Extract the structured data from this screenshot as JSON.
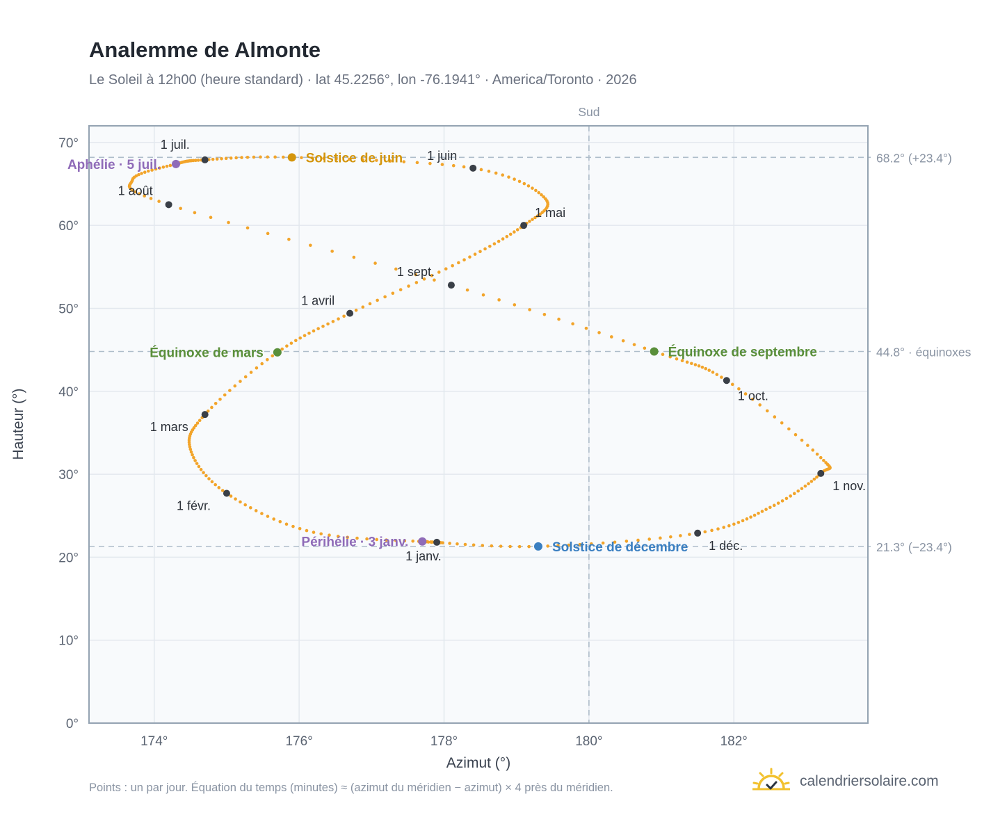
{
  "header": {
    "title": "Analemme de Almonte",
    "subtitle": "Le Soleil à 12h00 (heure standard) · lat 45.2256°, lon -76.1941° · America/Toronto · 2026"
  },
  "footer": {
    "note": "Points : un par jour. Équation du temps (minutes) ≈ (azimut du méridien − azimut) × 4 près du méridien.",
    "brand": "calendriersolaire.com",
    "brand_icon": "sun-logo-icon"
  },
  "colors": {
    "curve": "#f2a42a",
    "month_marker": "#3a3f47",
    "solstice_june": "#d4950b",
    "solstice_december": "#3a7fc1",
    "equinox": "#5a8f3a",
    "apsis": "#8f6bb8",
    "reference_line": "#aebdca",
    "plot_background": "#f8fafc",
    "grid": "#e3e8ee"
  },
  "chart_data": {
    "type": "scatter",
    "xlabel": "Azimut (°)",
    "ylabel": "Hauteur (°)",
    "xlim": [
      173.1,
      183.85
    ],
    "ylim": [
      0,
      72
    ],
    "xticks": [
      174,
      176,
      178,
      180,
      182
    ],
    "xtick_labels": [
      "174°",
      "176°",
      "178°",
      "180°",
      "182°"
    ],
    "yticks": [
      0,
      10,
      20,
      30,
      40,
      50,
      60,
      70
    ],
    "ytick_labels": [
      "0°",
      "10°",
      "20°",
      "30°",
      "40°",
      "50°",
      "60°",
      "70°"
    ],
    "grid": true,
    "meridian": {
      "x": 180,
      "label": "Sud"
    },
    "reference_lines": [
      {
        "y": 68.2,
        "label": "68.2° (+23.4°)"
      },
      {
        "y": 44.8,
        "label": "44.8° · équinoxes"
      },
      {
        "y": 21.3,
        "label": "21.3° (−23.4°)"
      }
    ],
    "series": [
      {
        "kind": "daily_path",
        "points": [
          [
            177.9,
            21.8
          ],
          [
            176.2,
            23.0
          ],
          [
            175.0,
            27.7
          ],
          [
            174.5,
            33.0
          ],
          [
            174.7,
            37.2
          ],
          [
            175.7,
            44.7
          ],
          [
            176.7,
            49.4
          ],
          [
            178.2,
            55.5
          ],
          [
            179.1,
            60.0
          ],
          [
            179.4,
            63.2
          ],
          [
            178.4,
            66.9
          ],
          [
            175.9,
            68.2
          ],
          [
            174.7,
            67.9
          ],
          [
            174.3,
            67.4
          ],
          [
            173.7,
            65.5
          ],
          [
            174.2,
            62.5
          ],
          [
            178.1,
            52.8
          ],
          [
            180.9,
            44.8
          ],
          [
            181.9,
            41.3
          ],
          [
            183.2,
            32.0
          ],
          [
            183.2,
            30.1
          ],
          [
            182.5,
            26.0
          ],
          [
            181.5,
            22.9
          ],
          [
            179.3,
            21.3
          ],
          [
            177.7,
            21.9
          ]
        ]
      }
    ],
    "month_markers": [
      {
        "label": "1 janv.",
        "x": 177.9,
        "y": 21.8
      },
      {
        "label": "1 févr.",
        "x": 175.0,
        "y": 27.7
      },
      {
        "label": "1 mars",
        "x": 174.7,
        "y": 37.2
      },
      {
        "label": "1 avril",
        "x": 176.7,
        "y": 49.4
      },
      {
        "label": "1 mai",
        "x": 179.1,
        "y": 60.0
      },
      {
        "label": "1 juin",
        "x": 178.4,
        "y": 66.9
      },
      {
        "label": "1 juil.",
        "x": 174.7,
        "y": 67.9
      },
      {
        "label": "1 août",
        "x": 174.2,
        "y": 62.5
      },
      {
        "label": "1 sept.",
        "x": 178.1,
        "y": 52.8
      },
      {
        "label": "1 oct.",
        "x": 181.9,
        "y": 41.3
      },
      {
        "label": "1 nov.",
        "x": 183.2,
        "y": 30.1
      },
      {
        "label": "1 déc.",
        "x": 181.5,
        "y": 22.9
      }
    ],
    "events": [
      {
        "label": "Solstice de juin",
        "x": 175.9,
        "y": 68.2,
        "kind": "solstice_june"
      },
      {
        "label": "Solstice de décembre",
        "x": 179.3,
        "y": 21.3,
        "kind": "solstice_december"
      },
      {
        "label": "Équinoxe de mars",
        "x": 175.7,
        "y": 44.7,
        "kind": "equinox"
      },
      {
        "label": "Équinoxe de septembre",
        "x": 180.9,
        "y": 44.8,
        "kind": "equinox"
      },
      {
        "label": "Aphélie · 5 juil.",
        "x": 174.3,
        "y": 67.4,
        "kind": "apsis"
      },
      {
        "label": "Périhélie · 3 janv.",
        "x": 177.7,
        "y": 21.9,
        "kind": "apsis"
      }
    ]
  }
}
